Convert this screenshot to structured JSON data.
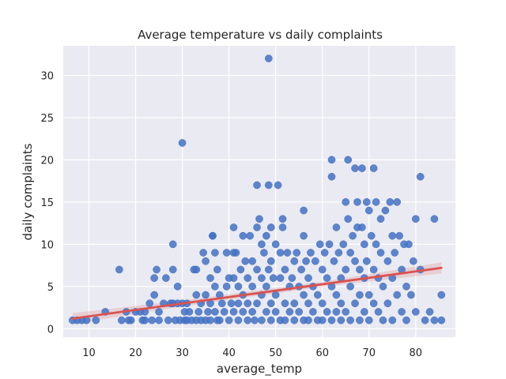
{
  "chart_data": {
    "type": "scatter",
    "title": "Average temperature vs daily complaints",
    "xlabel": "average_temp",
    "ylabel": "daily complaints",
    "xlim": [
      4.5,
      88.5
    ],
    "ylim": [
      -1,
      33.5
    ],
    "xticks": [
      10,
      20,
      30,
      40,
      50,
      60,
      70,
      80
    ],
    "yticks": [
      0,
      5,
      10,
      15,
      20,
      25,
      30
    ],
    "grid": true,
    "background": "#EAEAF2",
    "point_color": "#4472C4",
    "trend_color": "#D9534F",
    "trend_line": {
      "x": [
        6.5,
        85.5
      ],
      "y": [
        1.2,
        7.2
      ]
    },
    "trend_band_halfwidth": {
      "x": [
        6.5,
        30,
        60,
        85.5
      ],
      "w": [
        0.65,
        0.35,
        0.3,
        0.65
      ]
    },
    "points": [
      [
        6.5,
        1
      ],
      [
        7.5,
        1
      ],
      [
        8.5,
        1
      ],
      [
        9.5,
        1
      ],
      [
        11.5,
        1
      ],
      [
        13.5,
        2
      ],
      [
        16.5,
        7
      ],
      [
        17,
        1
      ],
      [
        18,
        2
      ],
      [
        18.5,
        1
      ],
      [
        19,
        1
      ],
      [
        20,
        2
      ],
      [
        21,
        2
      ],
      [
        21.5,
        1
      ],
      [
        22,
        2
      ],
      [
        22,
        1
      ],
      [
        23,
        3
      ],
      [
        23.5,
        1
      ],
      [
        24,
        6
      ],
      [
        24.5,
        7
      ],
      [
        24,
        4
      ],
      [
        25,
        2
      ],
      [
        25,
        1
      ],
      [
        26,
        3
      ],
      [
        26.5,
        6
      ],
      [
        27,
        1
      ],
      [
        27.5,
        3
      ],
      [
        28,
        10
      ],
      [
        28,
        7
      ],
      [
        28,
        3
      ],
      [
        28.5,
        1
      ],
      [
        29,
        5
      ],
      [
        29,
        3
      ],
      [
        29.5,
        1
      ],
      [
        30,
        22
      ],
      [
        30,
        3
      ],
      [
        30.5,
        1
      ],
      [
        30.5,
        2
      ],
      [
        31,
        3
      ],
      [
        31,
        1
      ],
      [
        31.5,
        2
      ],
      [
        32,
        1
      ],
      [
        32.5,
        7
      ],
      [
        33,
        7
      ],
      [
        33,
        4
      ],
      [
        33,
        1
      ],
      [
        33.5,
        2
      ],
      [
        34,
        3
      ],
      [
        34,
        1
      ],
      [
        34.5,
        9
      ],
      [
        35,
        8
      ],
      [
        35,
        4
      ],
      [
        35,
        1
      ],
      [
        35.5,
        2
      ],
      [
        36,
        6
      ],
      [
        36,
        3
      ],
      [
        36,
        1
      ],
      [
        36.5,
        11
      ],
      [
        36.5,
        11
      ],
      [
        37,
        9
      ],
      [
        37,
        5
      ],
      [
        37,
        2
      ],
      [
        37.5,
        1
      ],
      [
        37.5,
        7
      ],
      [
        38,
        4
      ],
      [
        38,
        1
      ],
      [
        38.5,
        3
      ],
      [
        39,
        2
      ],
      [
        39.5,
        9
      ],
      [
        39.5,
        5
      ],
      [
        40,
        6
      ],
      [
        40,
        1
      ],
      [
        40.5,
        3
      ],
      [
        41,
        12
      ],
      [
        41,
        9
      ],
      [
        41,
        6
      ],
      [
        41,
        2
      ],
      [
        41.5,
        9
      ],
      [
        42,
        5
      ],
      [
        42,
        3
      ],
      [
        42,
        1
      ],
      [
        42.5,
        7
      ],
      [
        43,
        11
      ],
      [
        43,
        4
      ],
      [
        43,
        2
      ],
      [
        43.5,
        8
      ],
      [
        44,
        6
      ],
      [
        44,
        3
      ],
      [
        44,
        1
      ],
      [
        44.5,
        11
      ],
      [
        45,
        8
      ],
      [
        45,
        5
      ],
      [
        45,
        2
      ],
      [
        45.5,
        1
      ],
      [
        46,
        17
      ],
      [
        46,
        12
      ],
      [
        46,
        7
      ],
      [
        46,
        3
      ],
      [
        46.5,
        13
      ],
      [
        47,
        10
      ],
      [
        47,
        6
      ],
      [
        47,
        4
      ],
      [
        47,
        1
      ],
      [
        47.5,
        9
      ],
      [
        48,
        11
      ],
      [
        48,
        5
      ],
      [
        48,
        2
      ],
      [
        48.5,
        32
      ],
      [
        48.5,
        17
      ],
      [
        48.5,
        7
      ],
      [
        49,
        12
      ],
      [
        49,
        8
      ],
      [
        49,
        3
      ],
      [
        49,
        1
      ],
      [
        49.5,
        6
      ],
      [
        50,
        10
      ],
      [
        50,
        4
      ],
      [
        50,
        2
      ],
      [
        50.5,
        17
      ],
      [
        51,
        9
      ],
      [
        51,
        6
      ],
      [
        51,
        1
      ],
      [
        51.5,
        13
      ],
      [
        51.5,
        12
      ],
      [
        52,
        7
      ],
      [
        52,
        3
      ],
      [
        52,
        1
      ],
      [
        52.5,
        9
      ],
      [
        53,
        5
      ],
      [
        53,
        2
      ],
      [
        53.5,
        6
      ],
      [
        54,
        8
      ],
      [
        54,
        3
      ],
      [
        54,
        1
      ],
      [
        54.5,
        9
      ],
      [
        55,
        5
      ],
      [
        55,
        2
      ],
      [
        55.5,
        7
      ],
      [
        56,
        14
      ],
      [
        56,
        11
      ],
      [
        56,
        4
      ],
      [
        56,
        1
      ],
      [
        56.5,
        8
      ],
      [
        57,
        6
      ],
      [
        57,
        3
      ],
      [
        57,
        1
      ],
      [
        57.5,
        9
      ],
      [
        58,
        5
      ],
      [
        58,
        2
      ],
      [
        58.5,
        8
      ],
      [
        59,
        4
      ],
      [
        59,
        1
      ],
      [
        59.5,
        10
      ],
      [
        60,
        7
      ],
      [
        60,
        3
      ],
      [
        60,
        1
      ],
      [
        60.5,
        9
      ],
      [
        61,
        6
      ],
      [
        61,
        2
      ],
      [
        61.5,
        10
      ],
      [
        62,
        20
      ],
      [
        62,
        18
      ],
      [
        62,
        5
      ],
      [
        62,
        1
      ],
      [
        62.5,
        8
      ],
      [
        63,
        12
      ],
      [
        63,
        4
      ],
      [
        63,
        2
      ],
      [
        63.5,
        9
      ],
      [
        64,
        6
      ],
      [
        64,
        3
      ],
      [
        64,
        1
      ],
      [
        64.5,
        10
      ],
      [
        65,
        15
      ],
      [
        65,
        7
      ],
      [
        65,
        2
      ],
      [
        65.5,
        20
      ],
      [
        65.5,
        13
      ],
      [
        66,
        9
      ],
      [
        66,
        5
      ],
      [
        66,
        1
      ],
      [
        66.5,
        11
      ],
      [
        67,
        19
      ],
      [
        67,
        8
      ],
      [
        67,
        3
      ],
      [
        67.5,
        15
      ],
      [
        67.5,
        12
      ],
      [
        68,
        7
      ],
      [
        68,
        4
      ],
      [
        68,
        1
      ],
      [
        68.5,
        19
      ],
      [
        68.5,
        12
      ],
      [
        69,
        10
      ],
      [
        69,
        6
      ],
      [
        69,
        2
      ],
      [
        69.5,
        15
      ],
      [
        69.5,
        8
      ],
      [
        70,
        14
      ],
      [
        70,
        4
      ],
      [
        70,
        1
      ],
      [
        70.5,
        11
      ],
      [
        71,
        19
      ],
      [
        71,
        7
      ],
      [
        71,
        3
      ],
      [
        71.5,
        15
      ],
      [
        71.5,
        10
      ],
      [
        72,
        6
      ],
      [
        72,
        2
      ],
      [
        72.5,
        13
      ],
      [
        72.5,
        9
      ],
      [
        73,
        5
      ],
      [
        73,
        1
      ],
      [
        73.5,
        14
      ],
      [
        74,
        8
      ],
      [
        74,
        3
      ],
      [
        74.5,
        15
      ],
      [
        75,
        11
      ],
      [
        75,
        6
      ],
      [
        75,
        1
      ],
      [
        75.5,
        9
      ],
      [
        76,
        15
      ],
      [
        76,
        4
      ],
      [
        76.5,
        11
      ],
      [
        77,
        7
      ],
      [
        77,
        2
      ],
      [
        77.5,
        10
      ],
      [
        78,
        5
      ],
      [
        78,
        1
      ],
      [
        78.5,
        10
      ],
      [
        79,
        4
      ],
      [
        79.5,
        8
      ],
      [
        80,
        13
      ],
      [
        80,
        2
      ],
      [
        81,
        18
      ],
      [
        81,
        7
      ],
      [
        82,
        1
      ],
      [
        83,
        2
      ],
      [
        84,
        13
      ],
      [
        84,
        1
      ],
      [
        85.5,
        4
      ],
      [
        85.5,
        1
      ]
    ]
  }
}
